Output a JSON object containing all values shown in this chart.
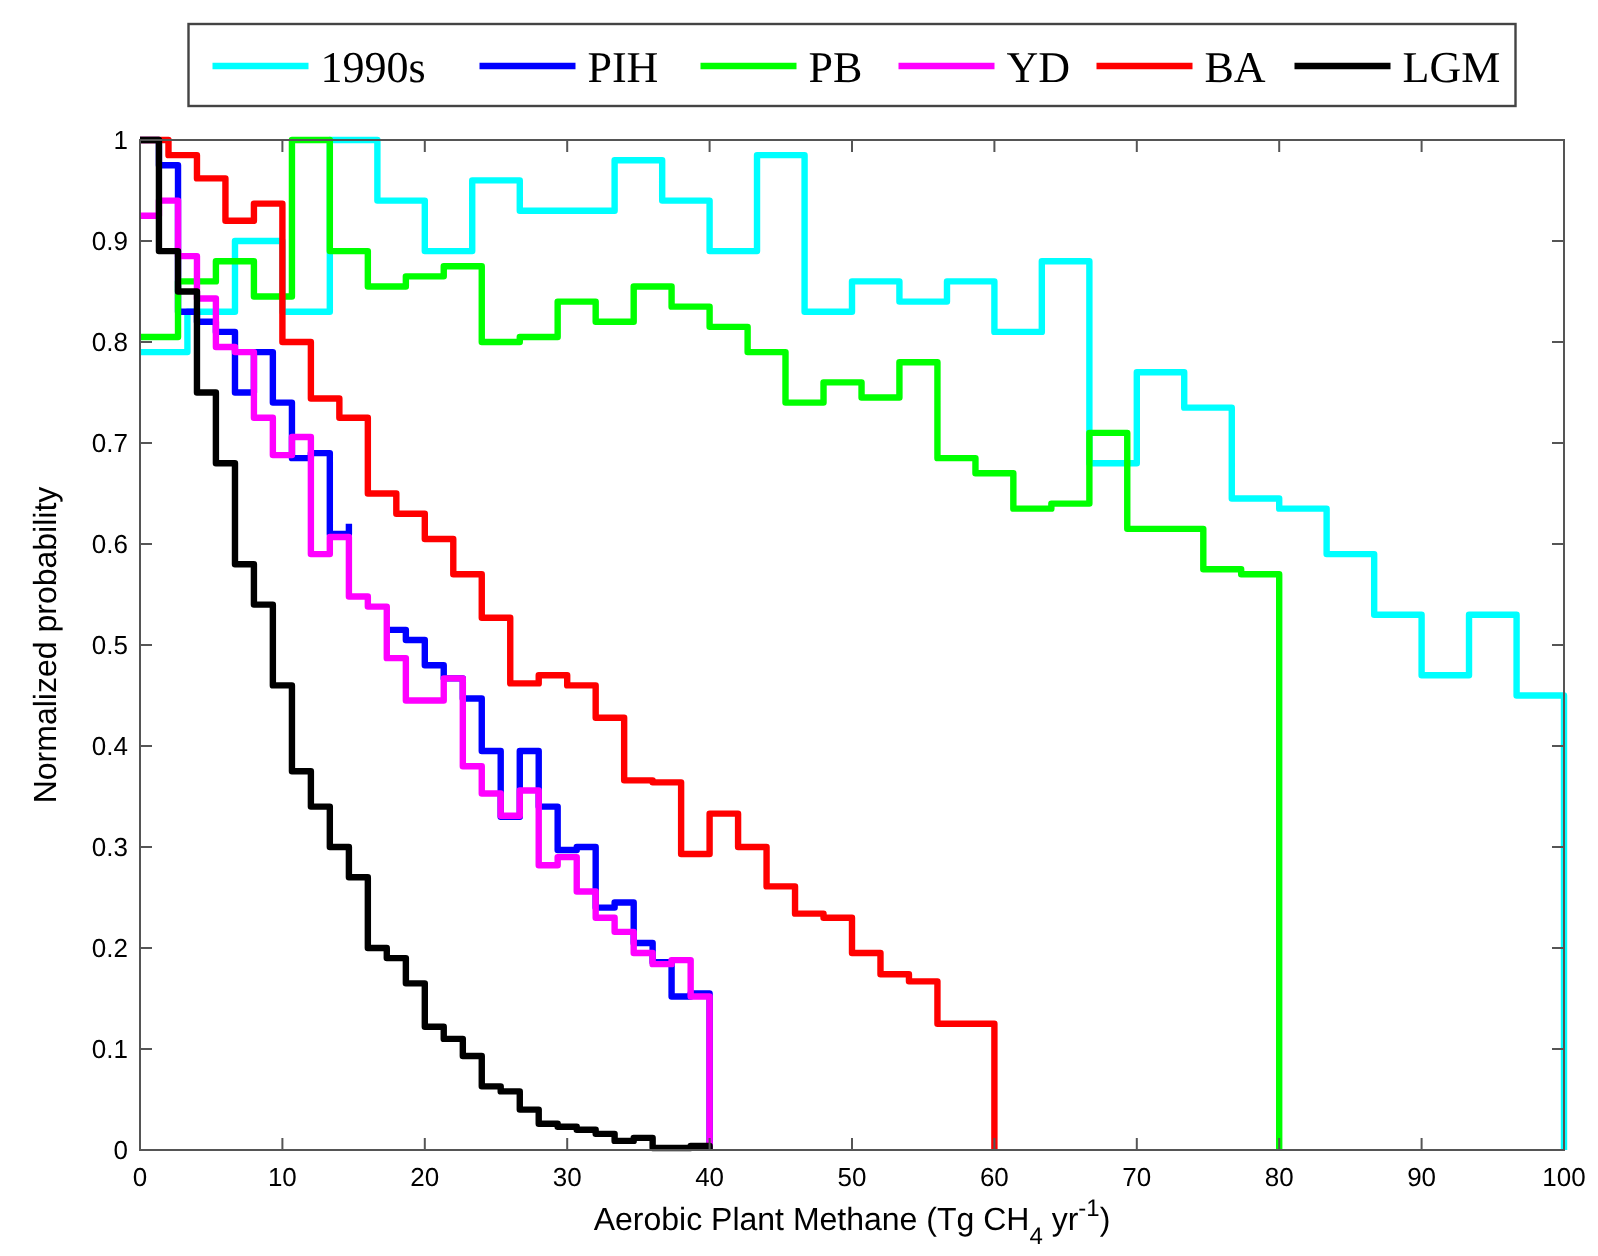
{
  "chart_data": {
    "type": "step",
    "xlabel": "Aerobic Plant Methane (Tg CH$_{4}$ yr$^{-1}$)",
    "ylabel": "Normalized probability",
    "xlim": [
      0,
      100
    ],
    "ylim": [
      0,
      1
    ],
    "xticks": [
      0,
      10,
      20,
      30,
      40,
      50,
      60,
      70,
      80,
      90,
      100
    ],
    "yticks": [
      0,
      0.1,
      0.2,
      0.3,
      0.4,
      0.5,
      0.6,
      0.7,
      0.8,
      0.9,
      1
    ],
    "grid": false,
    "legend": "top",
    "line_style": "solid",
    "marker": "none",
    "series": [
      {
        "name": "1990s",
        "color": "#00ffff",
        "x": [
          0,
          3.33,
          6.67,
          10,
          13.33,
          16.67,
          20,
          23.33,
          26.67,
          30,
          33.33,
          36.67,
          40,
          43.33,
          46.67,
          50,
          53.33,
          56.67,
          60,
          63.33,
          66.67,
          70,
          73.33,
          76.67,
          80,
          83.33,
          86.67,
          90,
          93.33,
          96.67,
          100
        ],
        "values": [
          0.79,
          0.83,
          0.9,
          0.83,
          1.0,
          0.94,
          0.89,
          0.96,
          0.93,
          0.93,
          0.98,
          0.94,
          0.89,
          0.985,
          0.83,
          0.86,
          0.84,
          0.86,
          0.81,
          0.88,
          0.68,
          0.77,
          0.735,
          0.645,
          0.635,
          0.59,
          0.53,
          0.47,
          0.53,
          0.45,
          0
        ]
      },
      {
        "name": "PIH",
        "color": "#0000ff",
        "x": [
          0,
          1.33,
          2.67,
          4,
          5.33,
          6.67,
          8,
          9.33,
          10.67,
          12,
          13.33,
          14.67,
          16,
          17.33,
          18.67,
          20,
          21.33,
          22.67,
          24,
          25.33,
          26.67,
          28,
          29.33,
          30.67,
          32,
          33.33,
          34.67,
          36,
          37.33,
          38.67,
          40
        ],
        "values": [
          1.0,
          0.975,
          0.83,
          0.82,
          0.81,
          0.75,
          0.79,
          0.74,
          0.685,
          0.69,
          0.61,
          0.62,
          null,
          0.515,
          0.505,
          0.48,
          0.467,
          0.447,
          0.395,
          0.33,
          0.395,
          0.34,
          0.297,
          0.3,
          0.24,
          0.245,
          0.205,
          0.186,
          0.152,
          0.155,
          0
        ]
      },
      {
        "name": "PB",
        "color": "#00ff00",
        "x": [
          0,
          2.67,
          5.33,
          8,
          10.67,
          13.33,
          16,
          18.67,
          21.33,
          24,
          26.67,
          29.33,
          32,
          34.67,
          37.33,
          40,
          42.67,
          45.33,
          48,
          50.67,
          53.33,
          56,
          58.67,
          61.33,
          64,
          66.67,
          69.33,
          72,
          74.67,
          77.33,
          80
        ],
        "values": [
          0.805,
          0.86,
          0.88,
          0.845,
          1.0,
          0.89,
          0.855,
          0.865,
          0.875,
          0.8,
          0.805,
          0.84,
          0.82,
          0.855,
          0.835,
          0.815,
          0.79,
          0.74,
          0.76,
          0.745,
          0.78,
          0.685,
          0.67,
          0.635,
          0.64,
          0.71,
          0.615,
          0.615,
          0.575,
          0.57,
          0
        ]
      },
      {
        "name": "YD",
        "color": "#ff00ff",
        "x": [
          0,
          1.33,
          2.67,
          4,
          5.33,
          6.67,
          8,
          9.33,
          10.67,
          12,
          13.33,
          14.67,
          16,
          17.33,
          18.67,
          20,
          21.33,
          22.67,
          24,
          25.33,
          26.67,
          28,
          29.33,
          30.67,
          32,
          33.33,
          34.67,
          36,
          37.33,
          38.67,
          40
        ],
        "values": [
          0.925,
          0.94,
          0.885,
          0.843,
          0.795,
          0.79,
          0.725,
          0.688,
          0.706,
          0.59,
          0.607,
          0.548,
          0.538,
          0.487,
          0.445,
          0.445,
          0.467,
          0.38,
          0.353,
          0.331,
          0.356,
          0.282,
          0.29,
          0.256,
          0.23,
          0.216,
          0.195,
          0.184,
          0.188,
          0.152,
          0
        ]
      },
      {
        "name": "BA",
        "color": "#ff0000",
        "x": [
          0,
          2,
          4,
          6,
          8,
          10,
          12,
          14,
          16,
          18,
          20,
          22,
          24,
          26,
          28,
          30,
          32,
          34,
          36,
          38,
          40,
          42,
          44,
          46,
          48,
          50,
          52,
          54,
          56,
          58,
          60
        ],
        "values": [
          1.0,
          0.985,
          0.962,
          0.92,
          0.937,
          0.8,
          0.744,
          0.725,
          0.65,
          0.63,
          0.605,
          0.57,
          0.527,
          0.462,
          0.47,
          0.46,
          0.428,
          0.366,
          0.364,
          0.293,
          0.333,
          0.3,
          0.261,
          0.234,
          0.23,
          0.195,
          0.174,
          0.167,
          0.125,
          0.125,
          0
        ]
      },
      {
        "name": "LGM",
        "color": "#000000",
        "x": [
          0,
          1.33,
          2.67,
          4,
          5.33,
          6.67,
          8,
          9.33,
          10.67,
          12,
          13.33,
          14.67,
          16,
          17.33,
          18.67,
          20,
          21.33,
          22.67,
          24,
          25.33,
          26.67,
          28,
          29.33,
          30.67,
          32,
          33.33,
          34.67,
          36,
          37.33,
          38.67,
          40
        ],
        "values": [
          1.0,
          0.89,
          0.85,
          0.75,
          0.68,
          0.58,
          0.54,
          0.46,
          0.375,
          0.34,
          0.3,
          0.27,
          0.2,
          0.19,
          0.165,
          0.122,
          0.11,
          0.093,
          0.063,
          0.058,
          0.04,
          0.026,
          0.023,
          0.02,
          0.016,
          0.009,
          0.012,
          0.002,
          0.002,
          0.004,
          0
        ]
      }
    ]
  }
}
